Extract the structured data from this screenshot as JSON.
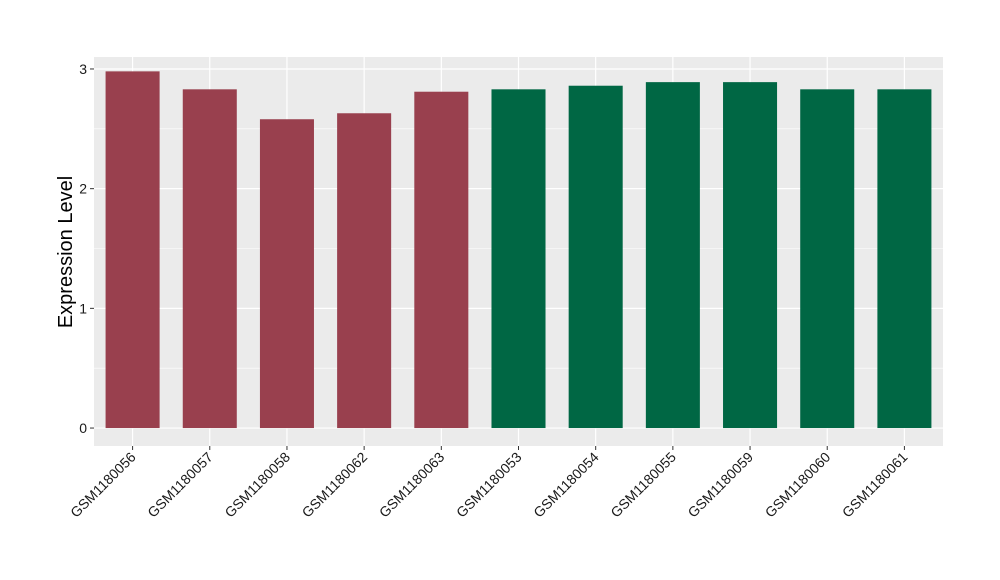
{
  "chart_data": {
    "type": "bar",
    "title": "",
    "xlabel": "",
    "ylabel": "Expression Level",
    "ylim": [
      -0.15,
      3.1
    ],
    "yticks": [
      0,
      1,
      2,
      3
    ],
    "grid": true,
    "legend": "none",
    "categories": [
      "GSM1180056",
      "GSM1180057",
      "GSM1180058",
      "GSM1180062",
      "GSM1180063",
      "GSM1180053",
      "GSM1180054",
      "GSM1180055",
      "GSM1180059",
      "GSM1180060",
      "GSM1180061"
    ],
    "values": [
      2.98,
      2.83,
      2.58,
      2.63,
      2.81,
      2.83,
      2.86,
      2.89,
      2.89,
      2.83,
      2.83
    ],
    "bar_colors": [
      "#99404e",
      "#99404e",
      "#99404e",
      "#99404e",
      "#99404e",
      "#006744",
      "#006744",
      "#006744",
      "#006744",
      "#006744",
      "#006744"
    ],
    "panel_background": "#ebebeb",
    "grid_color": "#ffffff"
  }
}
